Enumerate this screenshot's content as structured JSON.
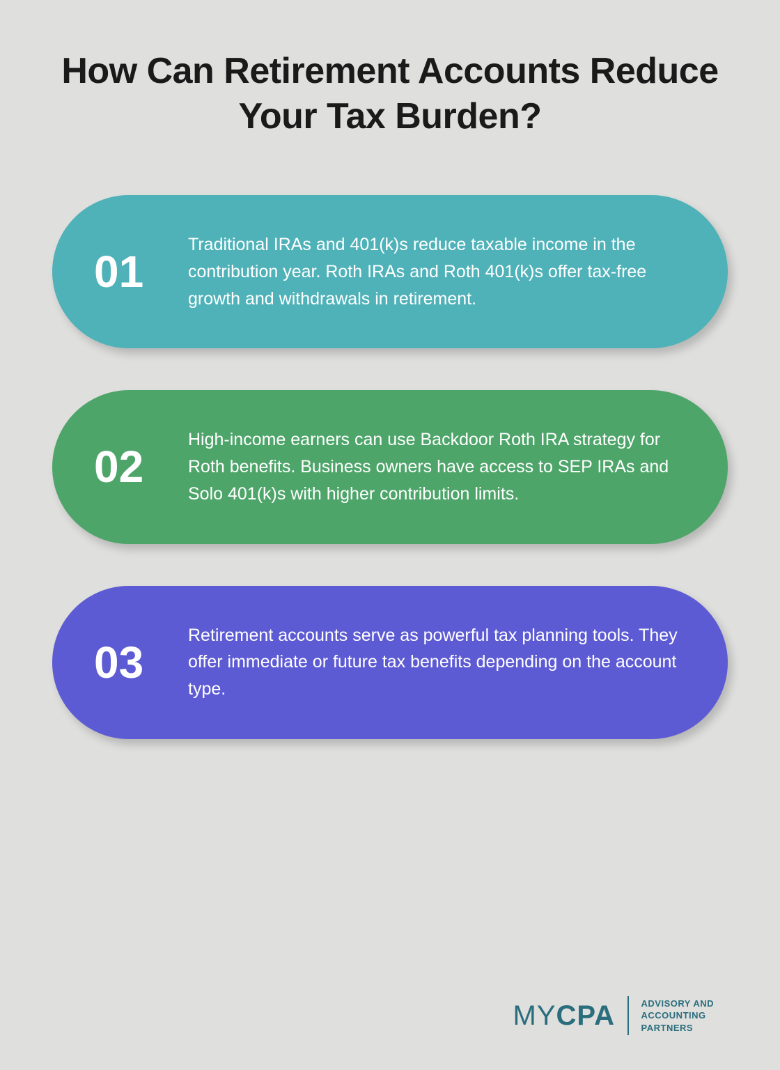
{
  "title": "How Can Retirement Accounts Reduce Your Tax Burden?",
  "background_color": "#dfdfde",
  "items": [
    {
      "number": "01",
      "text": "Traditional IRAs and 401(k)s reduce taxable income in the contribution year. Roth IRAs and Roth 401(k)s offer tax-free growth and withdrawals in retirement.",
      "color": "#4fb2b8"
    },
    {
      "number": "02",
      "text": "High-income earners can use Backdoor Roth IRA strategy for Roth benefits. Business owners have access to SEP IRAs and Solo 401(k)s with higher contribution limits.",
      "color": "#4ea56a"
    },
    {
      "number": "03",
      "text": "Retirement accounts serve as powerful tax planning tools. They offer immediate or future tax benefits depending on the account type.",
      "color": "#5d5bd3"
    }
  ],
  "logo": {
    "prefix": "MY",
    "main": "CPA",
    "tagline_line1": "ADVISORY AND",
    "tagline_line2": "ACCOUNTING",
    "tagline_line3": "PARTNERS",
    "color": "#2a6d7c"
  }
}
